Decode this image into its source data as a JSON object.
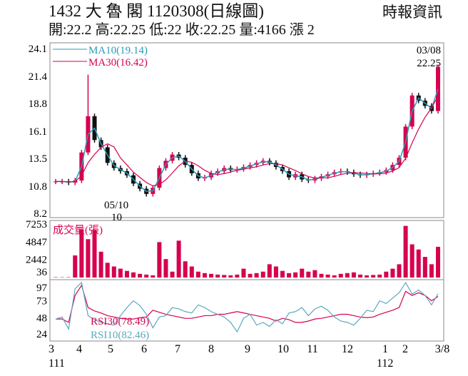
{
  "header": {
    "title": "1432  大 魯 閣 1120308(日線圖)",
    "source": "時報資訊",
    "quote": "開:22.2 高:22.25 低:22 收:22.25 量:4166 漲 2"
  },
  "colors": {
    "up": "#d6004f",
    "down": "#111111",
    "ma10": "#2a9bb8",
    "ma30": "#d6004f",
    "rsi10": "#5aa9c0",
    "rsi30": "#d6004f",
    "volume": "#d6004f"
  },
  "chart_data": [
    {
      "type": "candlestick",
      "title": "",
      "ylim": [
        8.2,
        24.1
      ],
      "yticks": [
        "24.1",
        "21.4",
        "18.8",
        "16.1",
        "13.5",
        "10.8",
        "8.2"
      ],
      "legend": [
        "MA10(19.14)",
        "MA30(16.42)"
      ],
      "annotations": {
        "last_date": "03/08",
        "last_close": "22.25",
        "low_label": "05/10",
        "low_value": "10"
      },
      "close": [
        11.2,
        11.2,
        11.1,
        11.3,
        14.0,
        17.5,
        15.2,
        14.5,
        13.0,
        12.5,
        12.2,
        11.8,
        11.0,
        10.5,
        10.0,
        10.6,
        12.5,
        13.2,
        13.8,
        13.5,
        12.8,
        12.0,
        11.5,
        11.6,
        12.0,
        12.2,
        12.5,
        12.3,
        12.4,
        12.6,
        12.8,
        13.0,
        13.2,
        13.0,
        12.6,
        12.2,
        11.6,
        11.9,
        11.4,
        11.3,
        11.5,
        11.7,
        11.9,
        12.1,
        12.2,
        12.1,
        11.9,
        11.8,
        11.9,
        12.0,
        12.1,
        12.3,
        12.8,
        13.5,
        16.5,
        19.5,
        19.0,
        18.5,
        18.0,
        22.25
      ],
      "highlight_high": 21.5
    },
    {
      "type": "bar",
      "title": "成交量(張)",
      "yticks": [
        "7253",
        "4847",
        "2442",
        "36"
      ],
      "ylim": [
        0,
        7253
      ],
      "values": [
        50,
        40,
        45,
        3000,
        6500,
        5200,
        6400,
        3500,
        2000,
        1500,
        1200,
        900,
        700,
        500,
        400,
        300,
        4800,
        2500,
        800,
        5000,
        2200,
        1500,
        800,
        600,
        500,
        400,
        350,
        300,
        400,
        1200,
        500,
        600,
        800,
        1800,
        1500,
        900,
        600,
        700,
        1200,
        800,
        1000,
        500,
        400,
        300,
        500,
        600,
        700,
        400,
        300,
        350,
        400,
        800,
        1200,
        1800,
        7000,
        4500,
        3800,
        2800,
        1800,
        4166
      ]
    },
    {
      "type": "line",
      "title": "",
      "yticks": [
        "97",
        "73",
        "48",
        "24"
      ],
      "ylim": [
        15,
        100
      ],
      "legend": [
        "RSI30(78.49)",
        "RSI10(82.46)"
      ],
      "series": [
        {
          "name": "RSI30(78.49)",
          "values": [
            45,
            45,
            40,
            80,
            95,
            62,
            57,
            54,
            50,
            48,
            46,
            45,
            45,
            47,
            48,
            58,
            55,
            52,
            50,
            48,
            46,
            46,
            48,
            50,
            50,
            52,
            52,
            54,
            56,
            54,
            52,
            50,
            48,
            46,
            42,
            46,
            44,
            40,
            40,
            42,
            45,
            46,
            48,
            50,
            52,
            52,
            50,
            48,
            47,
            48,
            52,
            55,
            58,
            62,
            86,
            80,
            84,
            80,
            72,
            78.49
          ]
        },
        {
          "name": "RSI10(82.46)",
          "values": [
            45,
            48,
            30,
            90,
            100,
            50,
            44,
            40,
            38,
            36,
            50,
            62,
            72,
            65,
            52,
            32,
            48,
            50,
            62,
            60,
            56,
            54,
            66,
            62,
            56,
            52,
            48,
            40,
            26,
            46,
            52,
            36,
            40,
            34,
            44,
            38,
            54,
            56,
            62,
            50,
            60,
            64,
            58,
            48,
            42,
            40,
            36,
            46,
            58,
            56,
            72,
            68,
            76,
            84,
            100,
            82,
            88,
            80,
            66,
            82.46
          ]
        }
      ]
    },
    {
      "type": "axis",
      "xticks": [
        "3",
        "4",
        "5",
        "6",
        "7",
        "8",
        "9",
        "10",
        "11",
        "12",
        "1",
        "2",
        "3/8"
      ],
      "year_labels": [
        "111",
        "112"
      ]
    }
  ]
}
